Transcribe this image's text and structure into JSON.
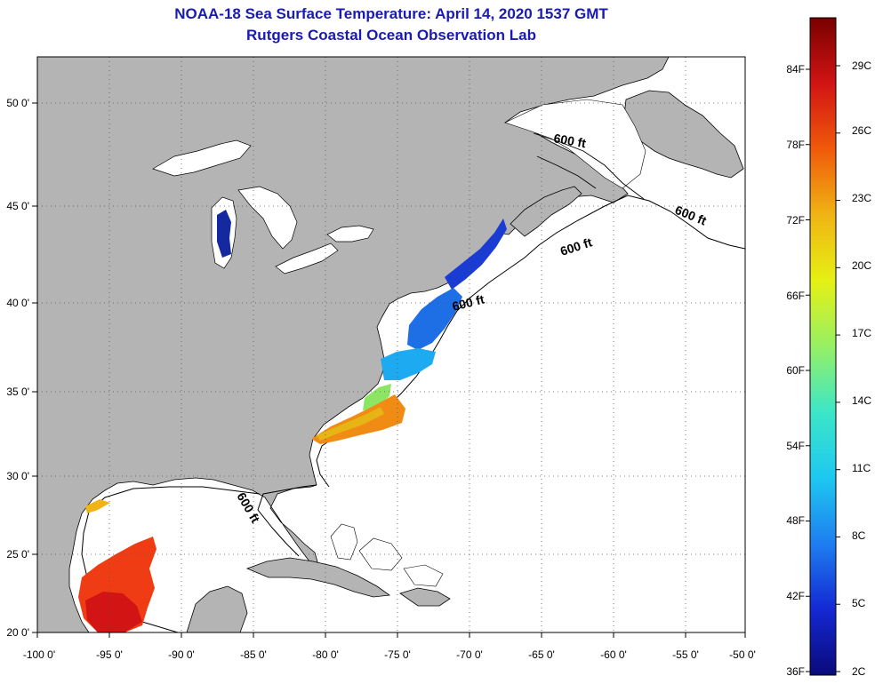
{
  "title_line1": "NOAA-18 Sea Surface Temperature:  April 14, 2020 1537 GMT",
  "title_line2": "Rutgers Coastal Ocean Observation Lab",
  "map": {
    "lon_labels": [
      "-100 0'",
      "-95 0'",
      "-90 0'",
      "-85 0'",
      "-80 0'",
      "-75 0'",
      "-70 0'",
      "-65 0'",
      "-60 0'",
      "-55 0'",
      "-50 0'"
    ],
    "lat_labels": [
      "50 0'",
      "45 0'",
      "40 0'",
      "35 0'",
      "30 0'",
      "25 0'",
      "20 0'"
    ],
    "isobath_labels": [
      "600 ft",
      "600 ft",
      "600 ft",
      "600 ft",
      "600 ft"
    ],
    "colors": {
      "land": "#b4b4b4",
      "ocean": "#ffffff",
      "frame": "#000000",
      "title": "#1a1ab4"
    }
  },
  "colorbar": {
    "fahrenheit_labels": [
      "84F",
      "78F",
      "72F",
      "66F",
      "60F",
      "54F",
      "48F",
      "42F",
      "36F"
    ],
    "celsius_labels": [
      "29C",
      "26C",
      "23C",
      "20C",
      "17C",
      "14C",
      "11C",
      "8C",
      "5C",
      "2C"
    ],
    "gradient": [
      "#0a0a7a",
      "#1428d2",
      "#1e7ef0",
      "#1ec8f0",
      "#3ce6c8",
      "#96f064",
      "#e6f014",
      "#f0b414",
      "#f05a0a",
      "#d21414",
      "#780000"
    ]
  }
}
